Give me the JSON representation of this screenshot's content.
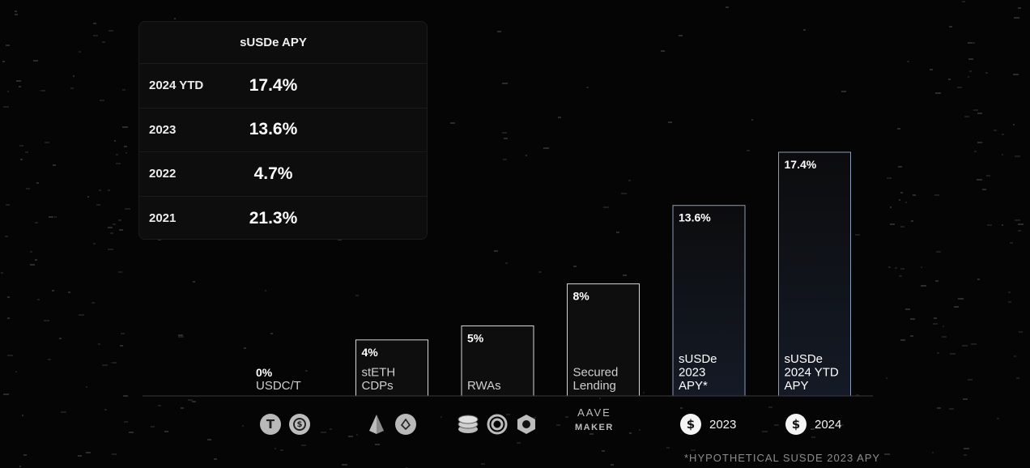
{
  "table": {
    "header": "sUSDe APY",
    "rows": [
      {
        "year": "2024 YTD",
        "apy": "17.4%"
      },
      {
        "year": "2023",
        "apy": "13.6%"
      },
      {
        "year": "2022",
        "apy": "4.7%"
      },
      {
        "year": "2021",
        "apy": "21.3%"
      }
    ]
  },
  "chart_data": {
    "type": "bar",
    "categories": [
      "USDC/T",
      "stETH CDPs",
      "RWAs",
      "Secured Lending",
      "sUSDe 2023 APY*",
      "sUSDe 2024 YTD APY"
    ],
    "category_lines": [
      [
        "USDC/T"
      ],
      [
        "stETH",
        "CDPs"
      ],
      [
        "RWAs"
      ],
      [
        "Secured",
        "Lending"
      ],
      [
        "sUSDe",
        "2023",
        "APY*"
      ],
      [
        "sUSDe",
        "2024 YTD",
        "APY"
      ]
    ],
    "values": [
      0,
      4,
      5,
      8,
      13.6,
      17.4
    ],
    "value_labels": [
      "0%",
      "4%",
      "5%",
      "8%",
      "13.6%",
      "17.4%"
    ],
    "highlighted": [
      false,
      false,
      false,
      false,
      true,
      true
    ],
    "ylim": [
      0,
      17.4
    ],
    "grid": false,
    "legend": "none"
  },
  "icons": {
    "usdc_t": [
      "tether-coin-icon",
      "usdc-coin-icon"
    ],
    "steth": [
      "lido-icon",
      "ethereum-coin-icon"
    ],
    "rwas": [
      "coin-stack-icon",
      "ondo-ring-icon",
      "hexagon-protocol-icon"
    ],
    "lending": {
      "top": "AAVE",
      "bottom": "MAKER"
    },
    "susde_2023": {
      "icon": "susde-coin-icon",
      "label": "2023"
    },
    "susde_2024": {
      "icon": "susde-coin-icon",
      "label": "2024"
    }
  },
  "footnote": "*HYPOTHETICAL SUSDE 2023 APY",
  "colors": {
    "background": "#050505",
    "bar_stroke": "#d6d6d6",
    "highlight_stroke": "#8a9bb9"
  }
}
